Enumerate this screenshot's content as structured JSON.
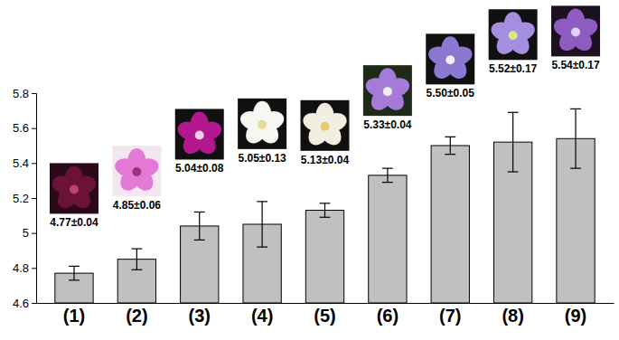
{
  "chart_data": {
    "type": "bar",
    "categories": [
      "(1)",
      "(2)",
      "(3)",
      "(4)",
      "(5)",
      "(6)",
      "(7)",
      "(8)",
      "(9)"
    ],
    "values": [
      4.77,
      4.85,
      5.04,
      5.05,
      5.13,
      5.33,
      5.5,
      5.52,
      5.54
    ],
    "errors": [
      0.04,
      0.06,
      0.08,
      0.13,
      0.04,
      0.04,
      0.05,
      0.17,
      0.17
    ],
    "value_labels": [
      "4.77±0.04",
      "4.85±0.06",
      "5.04±0.08",
      "5.05±0.13",
      "5.13±0.04",
      "5.33±0.04",
      "5.50±0.05",
      "5.52±0.17",
      "5.54±0.17"
    ],
    "data_labels": true,
    "color": "#c0c0c0",
    "ylim": [
      4.6,
      5.8
    ],
    "yticks": [
      4.6,
      4.8,
      5,
      5.2,
      5.4,
      5.6,
      5.8
    ],
    "grid": false
  }
}
